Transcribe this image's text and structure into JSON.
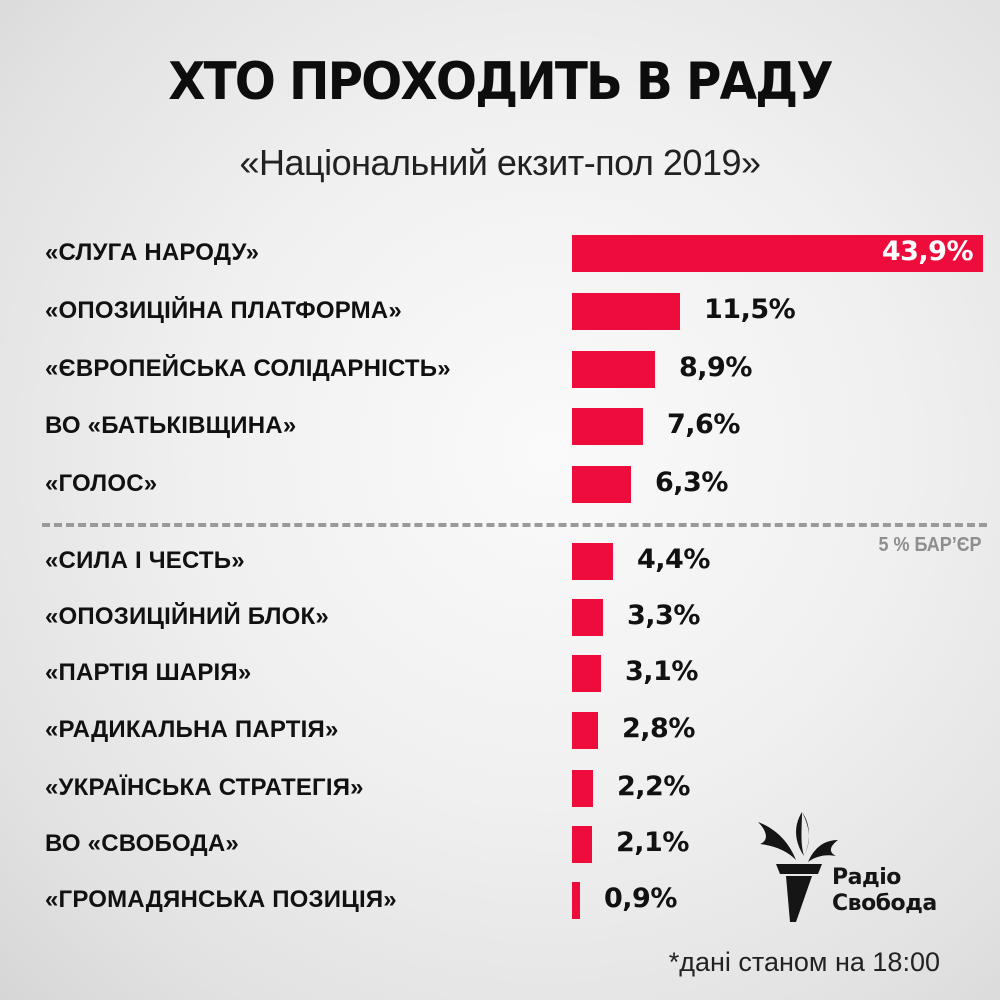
{
  "header": {
    "title": "ХТО ПРОХОДИТЬ В РАДУ",
    "subtitle": "«Національний екзит-пол 2019»"
  },
  "threshold": {
    "label": "5 % БАР’ЄР",
    "value": 5
  },
  "brand": {
    "logo_icon": "torch-icon",
    "name_line1": "Радіо",
    "name_line2": "Свобода"
  },
  "footnote": "*дані станом на 18:00",
  "colors": {
    "bar": "#ee0c3c",
    "background": "#efefef",
    "threshold_line": "#9a9a9a",
    "text": "#111111"
  },
  "rows": [
    {
      "label": "«СЛУГА НАРОДУ»",
      "value_label": "43,9%"
    },
    {
      "label": "«ОПОЗИЦІЙНА ПЛАТФОРМА»",
      "value_label": "11,5%"
    },
    {
      "label": "«ЄВРОПЕЙСЬКА СОЛІДАРНІСТЬ»",
      "value_label": "8,9%"
    },
    {
      "label": "ВО «БАТЬКІВЩИНА»",
      "value_label": "7,6%"
    },
    {
      "label": "«ГОЛОС»",
      "value_label": "6,3%"
    },
    {
      "label": "«СИЛА І ЧЕСТЬ»",
      "value_label": "4,4%"
    },
    {
      "label": "«ОПОЗИЦІЙНИЙ БЛОК»",
      "value_label": "3,3%"
    },
    {
      "label": "«ПАРТІЯ ШАРІЯ»",
      "value_label": "3,1%"
    },
    {
      "label": "«РАДИКАЛЬНА ПАРТІЯ»",
      "value_label": "2,8%"
    },
    {
      "label": "«УКРАЇНСЬКА СТРАТЕГІЯ»",
      "value_label": "2,2%"
    },
    {
      "label": "ВО «СВОБОДА»",
      "value_label": "2,1%"
    },
    {
      "label": "«ГРОМАДЯНСЬКА ПОЗИЦІЯ»",
      "value_label": "0,9%"
    }
  ],
  "chart_data": {
    "type": "bar",
    "orientation": "horizontal",
    "title": "ХТО ПРОХОДИТЬ В РАДУ",
    "subtitle": "«Національний екзит-пол 2019»",
    "xlabel": "",
    "ylabel": "",
    "unit": "%",
    "grid": false,
    "legend": null,
    "categories": [
      "«СЛУГА НАРОДУ»",
      "«ОПОЗИЦІЙНА ПЛАТФОРМА»",
      "«ЄВРОПЕЙСЬКА СОЛІДАРНІСТЬ»",
      "ВО «БАТЬКІВЩИНА»",
      "«ГОЛОС»",
      "«СИЛА І ЧЕСТЬ»",
      "«ОПОЗИЦІЙНИЙ БЛОК»",
      "«ПАРТІЯ ШАРІЯ»",
      "«РАДИКАЛЬНА ПАРТІЯ»",
      "«УКРАЇНСЬКА СТРАТЕГІЯ»",
      "ВО «СВОБОДА»",
      "«ГРОМАДЯНСЬКА ПОЗИЦІЯ»"
    ],
    "values": [
      43.9,
      11.5,
      8.9,
      7.6,
      6.3,
      4.4,
      3.3,
      3.1,
      2.8,
      2.2,
      2.1,
      0.9
    ],
    "xlim": [
      0,
      43.9
    ],
    "annotations": [
      {
        "type": "threshold_line",
        "value": 5,
        "label": "5 % БАР’ЄР",
        "style": "dashed"
      },
      {
        "type": "footnote",
        "text": "*дані станом на 18:00"
      }
    ]
  }
}
